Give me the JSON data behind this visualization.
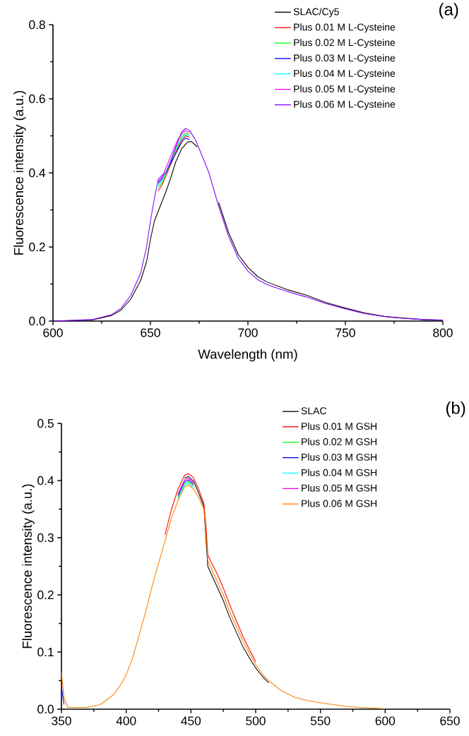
{
  "chart_data": [
    {
      "type": "line",
      "title": "(a)",
      "xlabel": "Wavelength (nm)",
      "ylabel": "Fluorescence intensity (a.u.)",
      "xlim": [
        600,
        800
      ],
      "ylim": [
        0,
        0.8
      ],
      "xticks": [
        600,
        650,
        700,
        750,
        800
      ],
      "yticks": [
        {
          "value": 0,
          "label": "0.0"
        },
        0.2,
        0.4,
        0.6,
        0.8
      ],
      "legend": "top right",
      "series": [
        {
          "name": "SLAC/Cy5",
          "color": "#000000",
          "x": [
            600,
            620,
            630,
            635,
            640,
            645,
            648,
            650,
            652,
            655,
            658,
            660,
            663,
            666,
            669,
            671,
            674,
            677,
            680,
            685,
            690,
            695,
            700,
            705,
            710,
            720,
            730,
            740,
            750,
            760,
            770,
            780,
            790,
            800
          ],
          "values": [
            0,
            0.003,
            0.015,
            0.03,
            0.06,
            0.11,
            0.16,
            0.22,
            0.27,
            0.31,
            0.35,
            0.38,
            0.43,
            0.465,
            0.483,
            0.485,
            0.47,
            null,
            null,
            0.32,
            0.24,
            0.18,
            0.145,
            0.12,
            0.105,
            0.085,
            0.07,
            0.05,
            0.035,
            0.022,
            0.013,
            0.008,
            0.004,
            0.002
          ]
        },
        {
          "name": "Plus 0.01 M L-Cysteine",
          "color": "#ff0000",
          "x": [
            654,
            656,
            664,
            666,
            668,
            670
          ],
          "values": [
            0.352,
            0.368,
            0.467,
            0.488,
            0.5,
            0.496
          ]
        },
        {
          "name": "Plus 0.02 M L-Cysteine",
          "color": "#00ff00",
          "x": [
            654,
            656,
            664,
            666,
            668,
            670
          ],
          "values": [
            0.36,
            0.374,
            0.473,
            0.498,
            0.508,
            0.505
          ]
        },
        {
          "name": "Plus 0.03 M L-Cysteine",
          "color": "#0000ff",
          "x": [
            654,
            656,
            664,
            666,
            668,
            670
          ],
          "values": [
            0.372,
            0.385,
            0.462,
            0.483,
            0.494,
            0.49
          ]
        },
        {
          "name": "Plus 0.04 M L-Cysteine",
          "color": "#00ffff",
          "x": [
            654,
            656,
            664,
            666,
            668,
            670
          ],
          "values": [
            0.366,
            0.38,
            0.478,
            0.493,
            0.504,
            0.5
          ]
        },
        {
          "name": "Plus 0.05 M L-Cysteine",
          "color": "#ff00ff",
          "x": [
            654,
            656,
            664,
            666,
            668,
            670
          ],
          "values": [
            0.377,
            0.389,
            0.49,
            0.505,
            0.514,
            0.51
          ]
        },
        {
          "name": "Plus 0.06 M L-Cysteine",
          "color": "#8000ff",
          "x": [
            600,
            620,
            630,
            635,
            640,
            645,
            648,
            650,
            652,
            654,
            656,
            658,
            660,
            663,
            666,
            668,
            670,
            673,
            677,
            680,
            685,
            690,
            695,
            700,
            705,
            710,
            720,
            730,
            740,
            750,
            760,
            770,
            780,
            790,
            800
          ],
          "values": [
            0,
            0.004,
            0.017,
            0.035,
            0.07,
            0.13,
            0.2,
            0.27,
            0.33,
            0.382,
            0.394,
            0.4,
            0.425,
            0.47,
            0.51,
            0.52,
            0.515,
            0.49,
            0.44,
            0.4,
            0.31,
            0.23,
            0.17,
            0.135,
            0.112,
            0.098,
            0.08,
            0.065,
            0.047,
            0.033,
            0.02,
            0.012,
            0.007,
            0.004,
            0.003
          ]
        }
      ]
    },
    {
      "type": "line",
      "title": "(b)",
      "ylabel": "Fluorescence intensity (a.u.)",
      "xlim": [
        350,
        650
      ],
      "ylim": [
        0,
        0.5
      ],
      "xticks": [
        350,
        400,
        450,
        500,
        550,
        600,
        650
      ],
      "yticks": [
        {
          "value": 0,
          "label": "0.0"
        },
        0.1,
        0.2,
        0.3,
        0.4,
        0.5
      ],
      "legend": "top right",
      "series": [
        {
          "name": "SLAC",
          "color": "#000000",
          "x": [
            445,
            448,
            452,
            456,
            460,
            463,
            465,
            470,
            475,
            480,
            485,
            490,
            495,
            500,
            505,
            510
          ],
          "values": [
            0.404,
            0.407,
            0.399,
            0.378,
            0.355,
            0.25,
            0.24,
            0.215,
            0.19,
            0.16,
            0.135,
            0.11,
            0.09,
            0.072,
            0.058,
            0.046
          ]
        },
        {
          "name": "Plus 0.01 M GSH",
          "color": "#ff0000",
          "x": [
            430,
            435,
            440,
            445,
            448,
            452,
            456,
            460,
            462,
            463,
            465,
            470,
            475,
            480,
            485,
            490,
            495,
            500
          ],
          "values": [
            0.305,
            0.35,
            0.385,
            0.409,
            0.412,
            0.405,
            0.385,
            0.36,
            0.31,
            0.27,
            0.26,
            0.238,
            0.212,
            0.182,
            0.155,
            0.128,
            0.105,
            0.083
          ]
        },
        {
          "name": "Plus 0.02 M GSH",
          "color": "#00ff00",
          "x": [
            440,
            445,
            448,
            452
          ],
          "values": [
            0.371,
            0.395,
            0.398,
            0.391
          ]
        },
        {
          "name": "Plus 0.03 M GSH",
          "color": "#0000ff",
          "x": [
            350,
            352,
            355,
            440,
            445,
            448,
            452
          ],
          "values": [
            0.04,
            0.008,
            null,
            0.374,
            0.398,
            0.401,
            0.393
          ]
        },
        {
          "name": "Plus 0.04 M GSH",
          "color": "#00ffff",
          "x": [
            440,
            445,
            448,
            452
          ],
          "values": [
            0.368,
            0.392,
            0.395,
            0.388
          ]
        },
        {
          "name": "Plus 0.05 M GSH",
          "color": "#ff00ff",
          "x": [
            440,
            445,
            448,
            452
          ],
          "values": [
            0.377,
            0.401,
            0.404,
            0.396
          ]
        },
        {
          "name": "Plus 0.06 M GSH",
          "color": "#ff8000",
          "x": [
            350,
            352,
            355,
            370,
            380,
            390,
            395,
            400,
            405,
            410,
            415,
            420,
            425,
            430,
            435,
            440,
            445,
            448,
            452,
            456,
            460,
            462,
            463,
            465,
            470,
            475,
            480,
            485,
            490,
            495,
            500,
            505,
            510,
            520,
            530,
            540,
            550,
            560,
            570,
            580,
            590,
            600
          ],
          "values": [
            0.065,
            0.02,
            0.003,
            0.003,
            0.008,
            0.025,
            0.04,
            0.06,
            0.09,
            0.13,
            0.17,
            0.215,
            0.255,
            0.295,
            0.335,
            0.365,
            0.389,
            0.392,
            0.385,
            0.37,
            0.35,
            0.3,
            0.26,
            0.25,
            0.225,
            0.2,
            0.17,
            0.145,
            0.12,
            0.098,
            0.078,
            0.062,
            0.05,
            0.032,
            0.021,
            0.015,
            0.011,
            0.008,
            0.005,
            0.003,
            0.002,
            0.001
          ]
        }
      ]
    }
  ]
}
